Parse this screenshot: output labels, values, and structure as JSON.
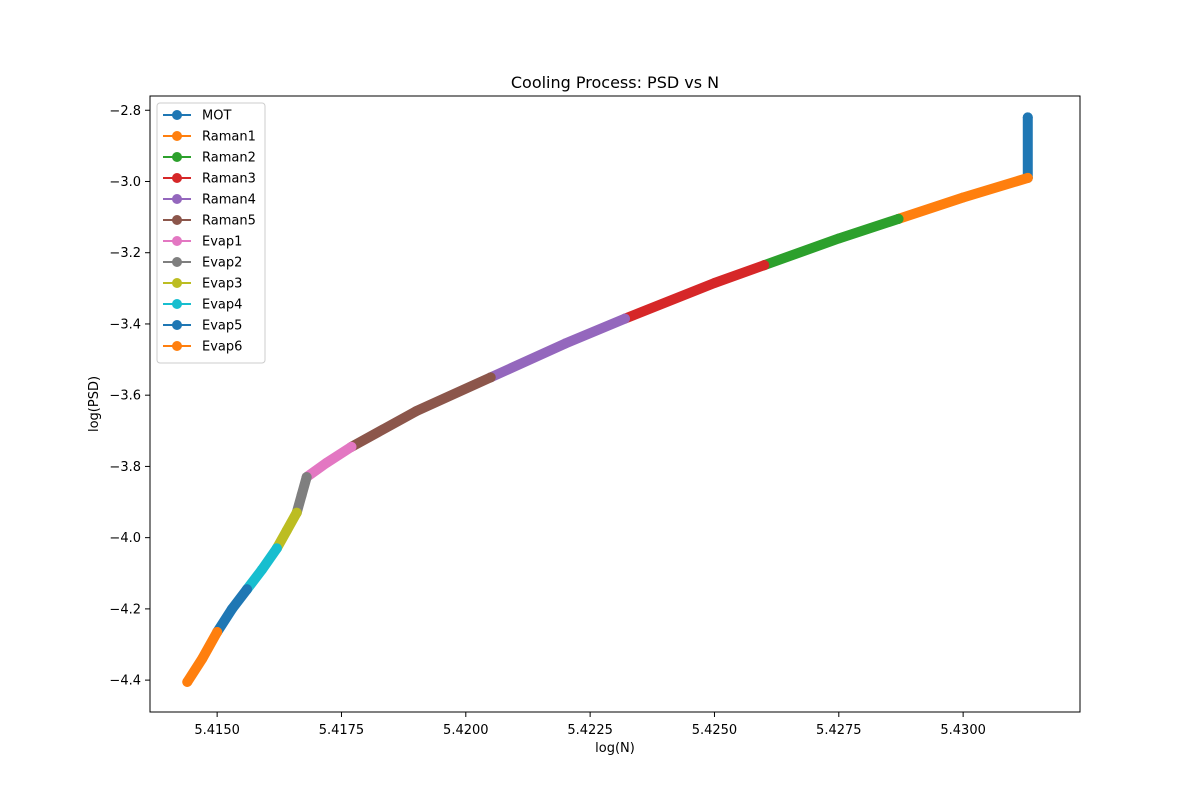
{
  "chart_data": {
    "type": "line",
    "title": "Cooling Process: PSD vs N",
    "xlabel": "log(N)",
    "ylabel": "log(PSD)",
    "xlim": [
      5.41365,
      5.43235
    ],
    "ylim": [
      -4.4895,
      -2.76
    ],
    "x_ticks": [
      5.415,
      5.4175,
      5.42,
      5.4225,
      5.425,
      5.4275,
      5.43
    ],
    "x_tick_labels": [
      "5.4150",
      "5.4175",
      "5.4200",
      "5.4225",
      "5.4250",
      "5.4275",
      "5.4300"
    ],
    "y_ticks": [
      -2.8,
      -3.0,
      -3.2,
      -3.4,
      -3.6,
      -3.8,
      -4.0,
      -4.2,
      -4.4
    ],
    "y_tick_labels": [
      "−2.8",
      "−3.0",
      "−3.2",
      "−3.4",
      "−3.6",
      "−3.8",
      "−4.0",
      "−4.2",
      "−4.4"
    ],
    "grid": false,
    "legend_position": "upper-left",
    "series": [
      {
        "name": "MOT",
        "color": "#1f77b4",
        "x": [
          5.4313,
          5.4313
        ],
        "y": [
          -2.82,
          -2.99
        ]
      },
      {
        "name": "Raman1",
        "color": "#ff7f0e",
        "x": [
          5.4313,
          5.43,
          5.4287
        ],
        "y": [
          -2.99,
          -3.045,
          -3.105
        ]
      },
      {
        "name": "Raman2",
        "color": "#2ca02c",
        "x": [
          5.4287,
          5.4275,
          5.426
        ],
        "y": [
          -3.105,
          -3.16,
          -3.235
        ]
      },
      {
        "name": "Raman3",
        "color": "#d62728",
        "x": [
          5.426,
          5.425,
          5.4232
        ],
        "y": [
          -3.235,
          -3.285,
          -3.385
        ]
      },
      {
        "name": "Raman4",
        "color": "#9467bd",
        "x": [
          5.4232,
          5.422,
          5.4205
        ],
        "y": [
          -3.385,
          -3.455,
          -3.55
        ]
      },
      {
        "name": "Raman5",
        "color": "#8c564b",
        "x": [
          5.4205,
          5.419,
          5.4177
        ],
        "y": [
          -3.55,
          -3.645,
          -3.745
        ]
      },
      {
        "name": "Evap1",
        "color": "#e377c2",
        "x": [
          5.4177,
          5.4172,
          5.4168
        ],
        "y": [
          -3.745,
          -3.79,
          -3.83
        ]
      },
      {
        "name": "Evap2",
        "color": "#7f7f7f",
        "x": [
          5.4168,
          5.4167,
          5.4166
        ],
        "y": [
          -3.83,
          -3.88,
          -3.93
        ]
      },
      {
        "name": "Evap3",
        "color": "#bcbd22",
        "x": [
          5.4166,
          5.4164,
          5.4162
        ],
        "y": [
          -3.93,
          -3.98,
          -4.03
        ]
      },
      {
        "name": "Evap4",
        "color": "#17becf",
        "x": [
          5.4162,
          5.4159,
          5.4156
        ],
        "y": [
          -4.03,
          -4.09,
          -4.145
        ]
      },
      {
        "name": "Evap5",
        "color": "#1f77b4",
        "x": [
          5.4156,
          5.4153,
          5.415
        ],
        "y": [
          -4.145,
          -4.2,
          -4.265
        ]
      },
      {
        "name": "Evap6",
        "color": "#ff7f0e",
        "x": [
          5.415,
          5.4147,
          5.4144
        ],
        "y": [
          -4.265,
          -4.34,
          -4.405
        ]
      }
    ]
  }
}
